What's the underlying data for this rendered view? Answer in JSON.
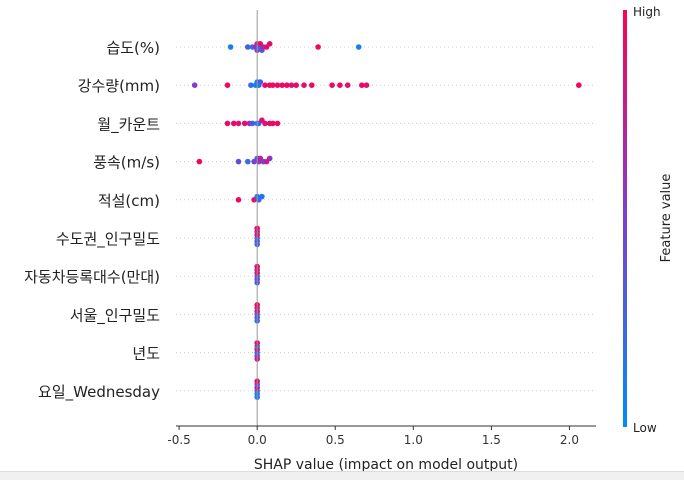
{
  "chart_data": {
    "type": "scatter",
    "subtype": "shap-beeswarm",
    "title": "",
    "xlabel": "SHAP value (impact on model output)",
    "ylabel": "",
    "xlim": [
      -0.52,
      2.17
    ],
    "xticks": [
      -0.5,
      0.0,
      0.5,
      1.0,
      1.5,
      2.0
    ],
    "xtick_labels": [
      "-0.5",
      "0.0",
      "0.5",
      "1.0",
      "1.5",
      "2.0"
    ],
    "grid": false,
    "colorbar": {
      "label": "Feature value",
      "high_label": "High",
      "low_label": "Low",
      "colors": {
        "low": "#008bfb",
        "mid": "#7c3fd2",
        "high": "#ff0052"
      }
    },
    "features": [
      {
        "name": "습도(%)",
        "points": [
          [
            -0.17,
            0.1
          ],
          [
            -0.06,
            0.3
          ],
          [
            -0.03,
            0.2
          ],
          [
            -0.01,
            0.6
          ],
          [
            0.0,
            0.8
          ],
          [
            0.0,
            0.5
          ],
          [
            0.01,
            0.2
          ],
          [
            0.02,
            0.9
          ],
          [
            0.03,
            0.4
          ],
          [
            0.04,
            0.7
          ],
          [
            0.06,
            0.85
          ],
          [
            0.08,
            0.9
          ],
          [
            0.39,
            0.95
          ],
          [
            0.65,
            0.1
          ]
        ]
      },
      {
        "name": "강수량(mm)",
        "points": [
          [
            -0.4,
            0.5
          ],
          [
            -0.19,
            0.95
          ],
          [
            -0.04,
            0.2
          ],
          [
            -0.01,
            0.1
          ],
          [
            0.0,
            0.05
          ],
          [
            0.01,
            0.15
          ],
          [
            0.02,
            0.3
          ],
          [
            0.05,
            0.9
          ],
          [
            0.08,
            0.95
          ],
          [
            0.1,
            0.9
          ],
          [
            0.13,
            0.95
          ],
          [
            0.16,
            0.9
          ],
          [
            0.19,
            0.95
          ],
          [
            0.22,
            0.9
          ],
          [
            0.25,
            0.95
          ],
          [
            0.3,
            0.9
          ],
          [
            0.35,
            0.95
          ],
          [
            0.48,
            0.9
          ],
          [
            0.53,
            0.95
          ],
          [
            0.58,
            0.9
          ],
          [
            0.67,
            0.95
          ],
          [
            0.7,
            0.9
          ],
          [
            2.06,
            0.95
          ]
        ]
      },
      {
        "name": "월_카운트",
        "points": [
          [
            -0.19,
            0.9
          ],
          [
            -0.15,
            0.95
          ],
          [
            -0.12,
            0.85
          ],
          [
            -0.08,
            0.9
          ],
          [
            -0.05,
            0.6
          ],
          [
            -0.03,
            0.3
          ],
          [
            0.0,
            0.1
          ],
          [
            0.01,
            0.2
          ],
          [
            0.03,
            0.9
          ],
          [
            0.05,
            0.85
          ],
          [
            0.08,
            0.95
          ],
          [
            0.1,
            0.9
          ],
          [
            0.13,
            0.95
          ]
        ]
      },
      {
        "name": "풍속(m/s)",
        "points": [
          [
            -0.37,
            0.95
          ],
          [
            -0.12,
            0.4
          ],
          [
            -0.06,
            0.2
          ],
          [
            -0.02,
            0.5
          ],
          [
            0.0,
            0.3
          ],
          [
            0.01,
            0.6
          ],
          [
            0.02,
            0.7
          ],
          [
            0.04,
            0.5
          ],
          [
            0.06,
            0.8
          ],
          [
            0.08,
            0.6
          ]
        ]
      },
      {
        "name": "적설(cm)",
        "points": [
          [
            -0.12,
            0.95
          ],
          [
            -0.02,
            0.9
          ],
          [
            0.0,
            0.1
          ],
          [
            0.01,
            0.2
          ],
          [
            0.03,
            0.15
          ]
        ]
      },
      {
        "name": "수도권_인구밀도",
        "points": [
          [
            0.0,
            0.1
          ],
          [
            0.0,
            0.9
          ],
          [
            0.0,
            0.4
          ],
          [
            0.0,
            0.7
          ],
          [
            0.0,
            0.2
          ],
          [
            0.0,
            0.95
          ]
        ]
      },
      {
        "name": "자동차등록대수(만대)",
        "points": [
          [
            0.0,
            0.1
          ],
          [
            0.0,
            0.9
          ],
          [
            0.0,
            0.5
          ],
          [
            0.0,
            0.8
          ],
          [
            0.0,
            0.3
          ],
          [
            0.0,
            0.95
          ]
        ]
      },
      {
        "name": "서울_인구밀도",
        "points": [
          [
            0.0,
            0.1
          ],
          [
            0.0,
            0.9
          ],
          [
            0.0,
            0.4
          ],
          [
            0.0,
            0.7
          ],
          [
            0.0,
            0.2
          ],
          [
            0.0,
            0.95
          ]
        ]
      },
      {
        "name": "년도",
        "points": [
          [
            0.0,
            0.1
          ],
          [
            0.0,
            0.9
          ],
          [
            0.0,
            0.5
          ],
          [
            0.0,
            0.2
          ],
          [
            0.0,
            0.8
          ],
          [
            0.0,
            0.95
          ]
        ]
      },
      {
        "name": "요일_Wednesday",
        "points": [
          [
            0.0,
            0.1
          ],
          [
            0.0,
            0.9
          ],
          [
            0.0,
            0.2
          ],
          [
            0.0,
            0.3
          ],
          [
            0.0,
            0.1
          ],
          [
            0.0,
            0.95
          ]
        ]
      }
    ]
  }
}
